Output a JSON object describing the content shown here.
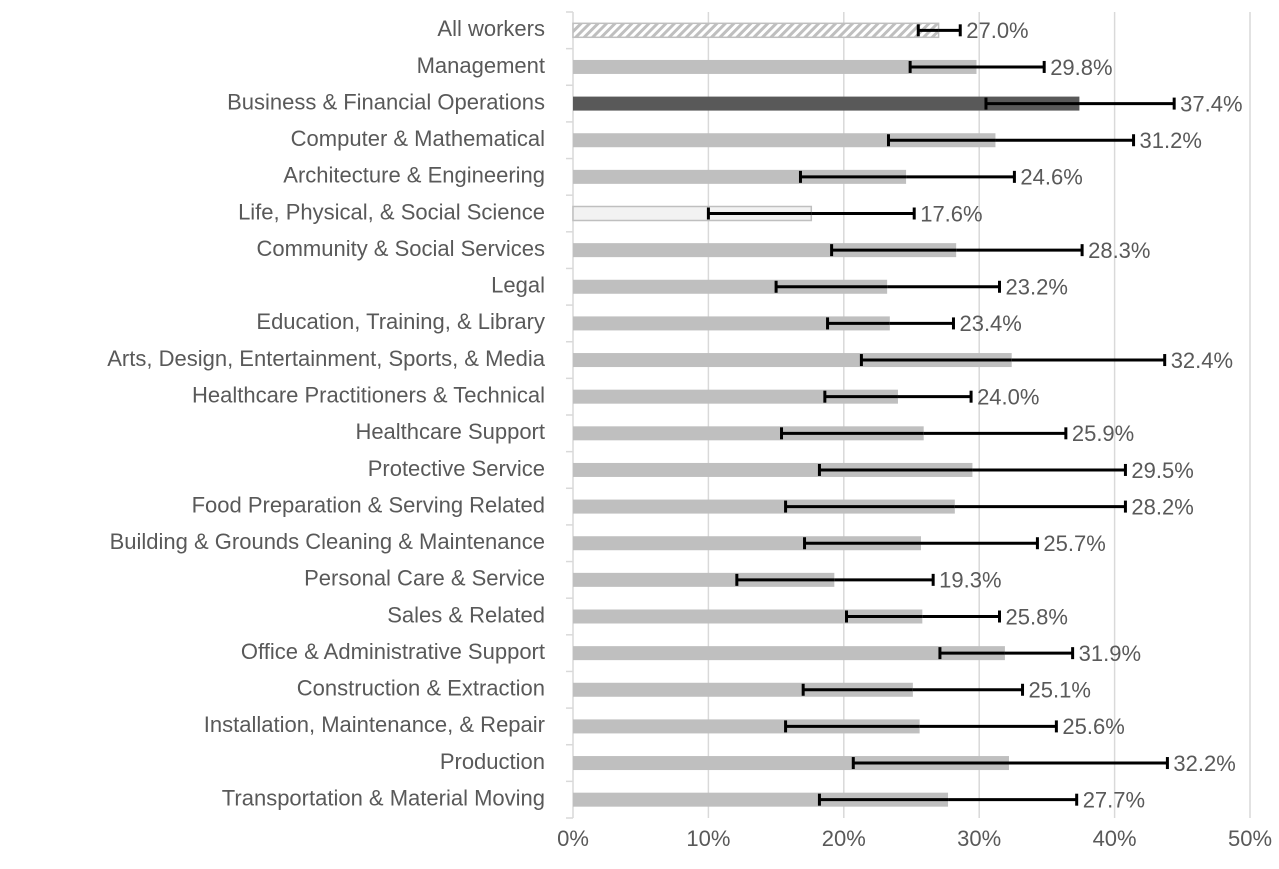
{
  "chart_data": {
    "type": "hbar",
    "categories": [
      "All workers",
      "Management",
      "Business & Financial Operations",
      "Computer & Mathematical",
      "Architecture & Engineering",
      "Life, Physical, & Social Science",
      "Community & Social Services",
      "Legal",
      "Education, Training, & Library",
      "Arts, Design, Entertainment, Sports, & Media",
      "Healthcare Practitioners & Technical",
      "Healthcare Support",
      "Protective Service",
      "Food Preparation & Serving Related",
      "Building & Grounds Cleaning & Maintenance",
      "Personal Care & Service",
      "Sales & Related",
      "Office & Administrative Support",
      "Construction & Extraction",
      "Installation, Maintenance, & Repair",
      "Production",
      "Transportation & Material Moving"
    ],
    "values": [
      27.0,
      29.8,
      37.4,
      31.2,
      24.6,
      17.6,
      28.3,
      23.2,
      23.4,
      32.4,
      24.0,
      25.9,
      29.5,
      28.2,
      25.7,
      19.3,
      25.8,
      31.9,
      25.1,
      25.6,
      32.2,
      27.7
    ],
    "value_labels": [
      "27.0%",
      "29.8%",
      "37.4%",
      "31.2%",
      "24.6%",
      "17.6%",
      "28.3%",
      "23.2%",
      "23.4%",
      "32.4%",
      "24.0%",
      "25.9%",
      "29.5%",
      "28.2%",
      "25.7%",
      "19.3%",
      "25.8%",
      "31.9%",
      "25.1%",
      "25.6%",
      "32.2%",
      "27.7%"
    ],
    "error_minus": [
      1.5,
      4.9,
      6.9,
      7.9,
      7.8,
      7.6,
      9.2,
      8.2,
      4.6,
      11.1,
      5.4,
      10.5,
      11.3,
      12.5,
      8.6,
      7.2,
      5.6,
      4.8,
      8.1,
      9.9,
      11.5,
      9.5
    ],
    "error_plus": [
      1.6,
      5.0,
      7.0,
      10.2,
      8.0,
      7.6,
      9.3,
      8.3,
      4.7,
      11.3,
      5.4,
      10.5,
      11.3,
      12.6,
      8.6,
      7.3,
      5.7,
      5.0,
      8.1,
      10.1,
      11.7,
      9.5
    ],
    "styles": [
      "hatch",
      "plain",
      "dark",
      "plain",
      "plain",
      "outline",
      "plain",
      "plain",
      "plain",
      "plain",
      "plain",
      "plain",
      "plain",
      "plain",
      "plain",
      "plain",
      "plain",
      "plain",
      "plain",
      "plain",
      "plain",
      "plain"
    ],
    "palette": {
      "plain": "#bfbfbf",
      "dark": "#595959",
      "outline": "#f2f2f2",
      "hatch": "#bfbfbf"
    },
    "error_color": "#000000",
    "xlim": [
      0,
      50
    ],
    "xticks": [
      {
        "value": 0,
        "label": "0%"
      },
      {
        "value": 10,
        "label": "10%"
      },
      {
        "value": 20,
        "label": "20%"
      },
      {
        "value": 30,
        "label": "30%"
      },
      {
        "value": 40,
        "label": "40%"
      },
      {
        "value": 50,
        "label": "50%"
      }
    ],
    "grid": true
  }
}
